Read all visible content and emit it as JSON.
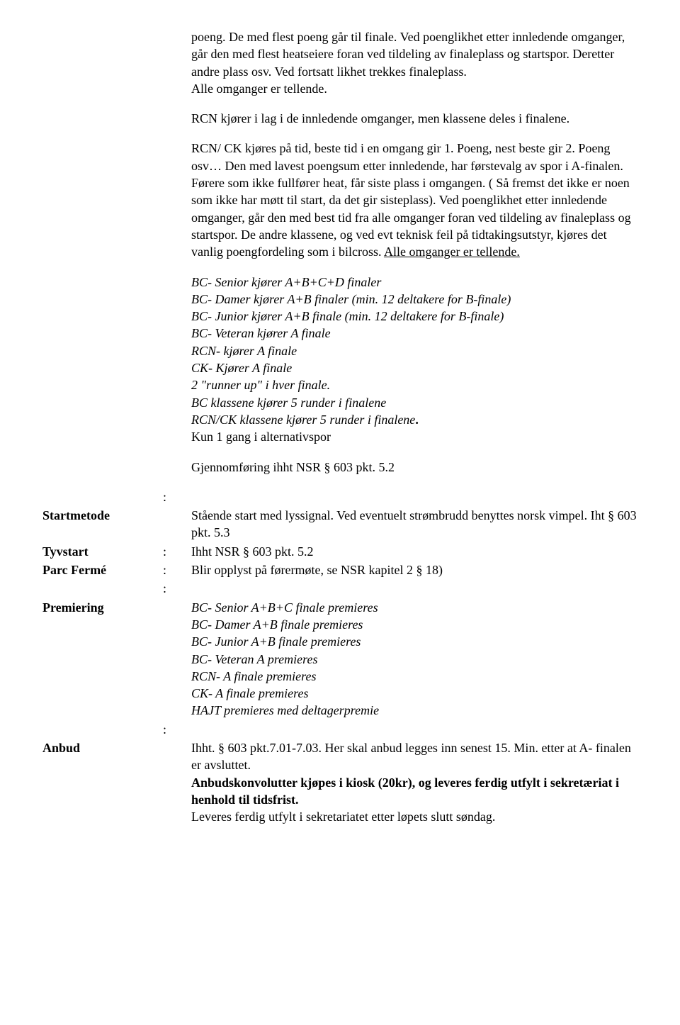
{
  "p1": "poeng. De med flest poeng går til finale. Ved poenglikhet etter innledende omganger, går den med flest heatseiere foran ved tildeling av finaleplass og startspor. Deretter andre plass osv. Ved fortsatt likhet trekkes finaleplass.",
  "p1b": "Alle omganger er tellende.",
  "p2": "RCN kjører i lag i de innledende omganger, men klassene deles i finalene.",
  "p3a": "RCN/ CK kjøres på tid, beste tid i en omgang gir 1. Poeng, nest beste gir 2. Poeng osv… Den med lavest poengsum etter innledende, har førstevalg av spor i A-finalen. Førere som ikke fullfører heat, får siste plass i omgangen. ( Så fremst det ikke er noen som ikke har møtt til start, da det gir sisteplass). Ved poenglikhet etter innledende omganger, går den med best tid fra alle omganger foran ved tildeling av finaleplass og startspor. De andre klassene, og ved evt teknisk feil på tidtakingsutstyr, kjøres det vanlig poengfordeling som i bilcross. ",
  "p3u": "Alle omganger er tellende.",
  "fin1": "BC- Senior kjører A+B+C+D finaler",
  "fin2": "BC- Damer kjører A+B finaler (min. 12 deltakere for B-finale)",
  "fin3": "BC- Junior kjører A+B finale (min. 12 deltakere for B-finale)",
  "fin4": "BC- Veteran kjører A finale",
  "fin5": "RCN- kjører A finale",
  "fin6": "CK- Kjører A finale",
  "fin7": "2 \"runner up\" i hver finale.",
  "fin8": "BC klassene kjører 5 runder i finalene",
  "fin9a": "RCN/CK klassene kjører 5 runder i finalene",
  "fin9dot": ".",
  "fin10": "Kun 1 gang i alternativspor",
  "gjenn": "Gjennomføring ihht NSR § 603 pkt. 5.2",
  "labels": {
    "startmetode": "Startmetode",
    "tyvstart": "Tyvstart",
    "parcferme": "Parc Fermé",
    "premiering": "Premiering",
    "anbud": "Anbud"
  },
  "startmetode": "Stående start med lyssignal. Ved eventuelt strømbrudd benyttes norsk vimpel. Iht § 603 pkt. 5.3",
  "tyvstart": "Ihht NSR § 603 pkt. 5.2",
  "parcferme": "Blir opplyst på førermøte, se NSR kapitel 2 § 18)",
  "prem1": "BC- Senior A+B+C  finale premieres",
  "prem2": "BC- Damer A+B finale premieres",
  "prem3": "BC- Junior A+B finale premieres",
  "prem4": "BC- Veteran A premieres",
  "prem5": "RCN- A finale premieres",
  "prem6": "CK- A finale premieres",
  "prem7": "HAJT premieres med deltagerpremie",
  "anbud1": "Ihht. § 603 pkt.7.01-7.03. Her skal anbud legges inn senest 15. Min. etter at A- finalen er avsluttet.",
  "anbud2": "Anbudskonvolutter kjøpes i kiosk (20kr), og leveres ferdig utfylt i sekretæriat i henhold til tidsfrist.",
  "anbud3": "Leveres ferdig utfylt i sekretariatet etter løpets slutt søndag."
}
